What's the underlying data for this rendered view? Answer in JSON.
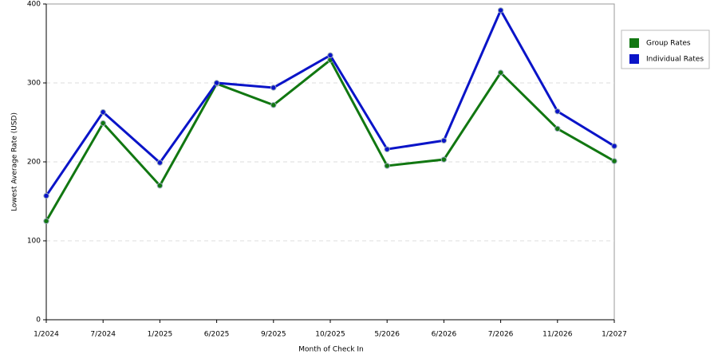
{
  "chart_data": {
    "type": "line",
    "x_label": "Month of Check In",
    "y_label": "Lowest Average Rate (USD)",
    "categories": [
      "1/2024",
      "7/2024",
      "1/2025",
      "6/2025",
      "9/2025",
      "10/2025",
      "5/2026",
      "6/2026",
      "7/2026",
      "11/2026",
      "1/2027"
    ],
    "series": [
      {
        "name": "Group Rates",
        "color": "#117711",
        "values": [
          125,
          249,
          170,
          299,
          272,
          329,
          195,
          203,
          313,
          242,
          201
        ]
      },
      {
        "name": "Individual Rates",
        "color": "#0a14c8",
        "values": [
          157,
          263,
          199,
          300,
          294,
          335,
          216,
          227,
          392,
          264,
          220
        ]
      }
    ],
    "ylim": [
      0,
      400
    ],
    "yticks": [
      0,
      100,
      200,
      300,
      400
    ],
    "grid": true,
    "legend": "top-right"
  }
}
